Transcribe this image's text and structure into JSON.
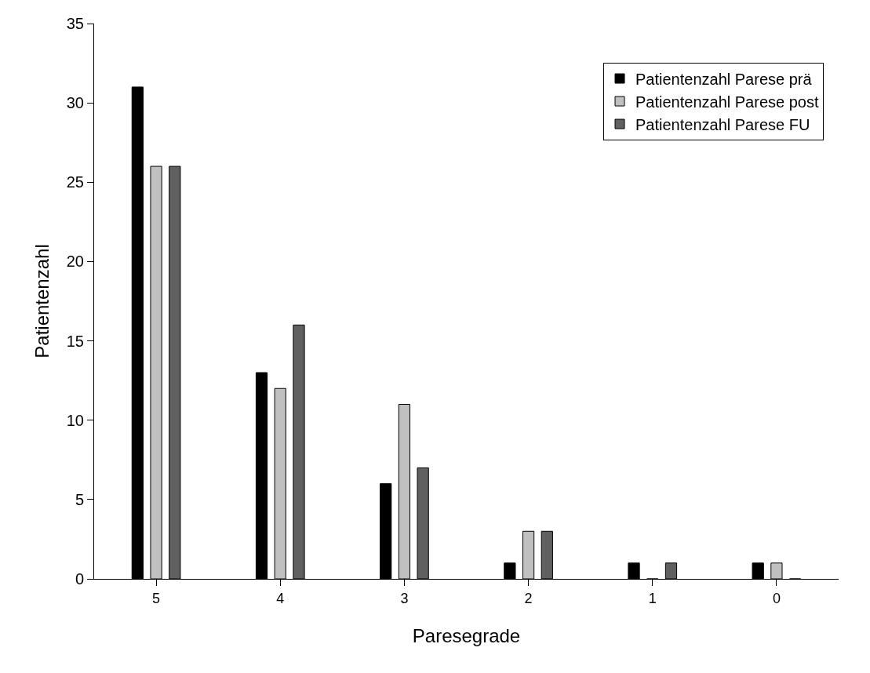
{
  "chart_data": {
    "type": "bar",
    "xlabel": "Paresegrade",
    "ylabel": "Patientenzahl",
    "categories": [
      "5",
      "4",
      "3",
      "2",
      "1",
      "0"
    ],
    "series": [
      {
        "name": "Patientenzahl Parese prä",
        "color": "#000000",
        "values": [
          31,
          13,
          6,
          1,
          1,
          1
        ]
      },
      {
        "name": "Patientenzahl Parese post",
        "color": "#c0c0c0",
        "values": [
          26,
          12,
          11,
          3,
          0,
          1
        ]
      },
      {
        "name": "Patientenzahl Parese FU",
        "color": "#606060",
        "values": [
          26,
          16,
          7,
          3,
          1,
          0
        ]
      }
    ],
    "ylim": [
      0,
      35
    ],
    "yticks": [
      0,
      5,
      10,
      15,
      20,
      25,
      30,
      35
    ],
    "legend": "top right"
  }
}
